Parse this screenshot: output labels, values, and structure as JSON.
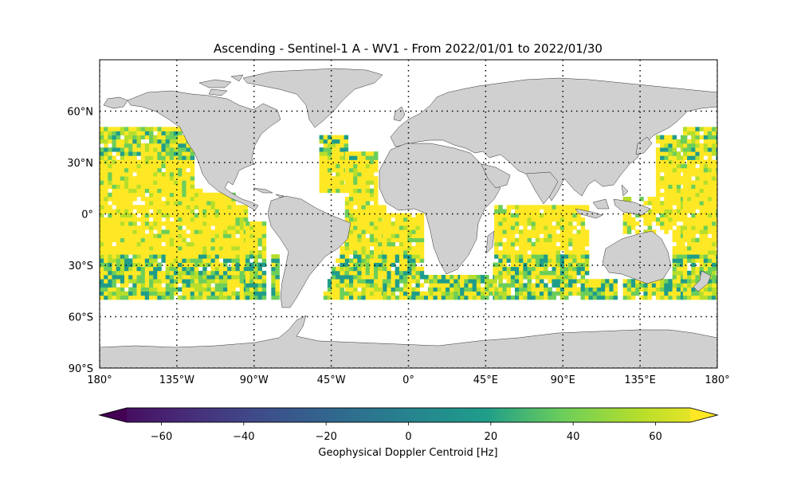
{
  "title": "Ascending - Sentinel-1 A - WV1 - From 2022/01/01 to 2022/01/30",
  "lat_ticks": [
    "60°N",
    "30°N",
    "0°",
    "30°S",
    "60°S",
    "90°S"
  ],
  "lat_tick_values": [
    60,
    30,
    0,
    -30,
    -60,
    -90
  ],
  "lon_ticks": [
    "180°",
    "135°W",
    "90°W",
    "45°W",
    "0°",
    "45°E",
    "90°E",
    "135°E",
    "180°"
  ],
  "lon_tick_values": [
    -180,
    -135,
    -90,
    -45,
    0,
    45,
    90,
    135,
    180
  ],
  "colorbar": {
    "label": "Geophysical Doppler Centroid [Hz]",
    "ticks": [
      "−60",
      "−40",
      "−20",
      "0",
      "20",
      "40",
      "60"
    ],
    "tick_values": [
      -60,
      -40,
      -20,
      0,
      20,
      40,
      60
    ],
    "vmin": -75,
    "vmax": 75,
    "extend": "both",
    "colormap": "viridis"
  },
  "colors": {
    "land": "#d0d0d0",
    "ocean": "#ffffff",
    "viridis": [
      "#440154",
      "#482777",
      "#3f4a8a",
      "#31678e",
      "#26838f",
      "#1f9d8a",
      "#6cce5a",
      "#b6de2b",
      "#fee825"
    ]
  },
  "map": {
    "projection": "PlateCarree",
    "lon_range": [
      -180,
      180
    ],
    "lat_range": [
      -90,
      90
    ],
    "gridlines": "dotted",
    "data_lat_range": [
      -50,
      50
    ]
  }
}
